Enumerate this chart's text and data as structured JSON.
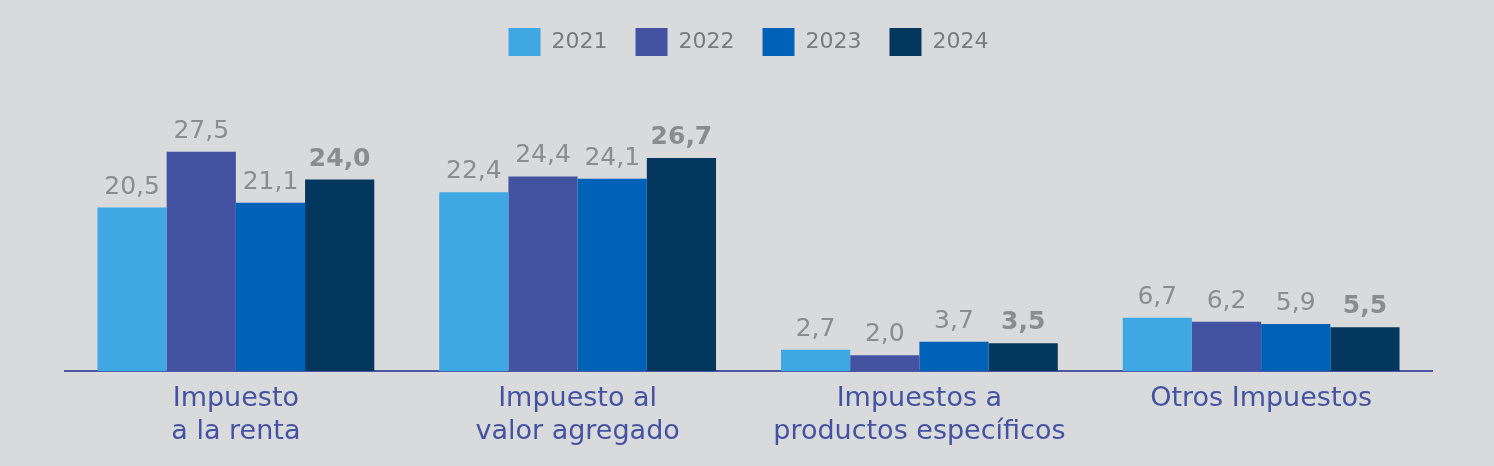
{
  "chart_data": {
    "type": "bar",
    "categories": [
      "Impuesto a la renta",
      "Impuesto al valor agregado",
      "Impuestos a productos específicos",
      "Otros Impuestos"
    ],
    "series": [
      {
        "name": "2021",
        "color": "#3fa8e3",
        "values": [
          20.5,
          22.4,
          2.7,
          6.7
        ],
        "value_labels": [
          "20,5",
          "22,4",
          "2,7",
          "6,7"
        ]
      },
      {
        "name": "2022",
        "color": "#4353a2",
        "values": [
          27.5,
          24.4,
          2.0,
          6.2
        ],
        "value_labels": [
          "27,5",
          "24,4",
          "2,0",
          "6,2"
        ]
      },
      {
        "name": "2023",
        "color": "#0062b7",
        "values": [
          21.1,
          24.1,
          3.7,
          5.9
        ],
        "value_labels": [
          "21,1",
          "24,1",
          "3,7",
          "5,9"
        ]
      },
      {
        "name": "2024",
        "color": "#04375e",
        "values": [
          24.0,
          26.7,
          3.5,
          5.5
        ],
        "value_labels": [
          "24,0",
          "26,7",
          "3,5",
          "5,5"
        ]
      }
    ],
    "legend": "top",
    "grid": false,
    "tick_labels": "x"
  }
}
